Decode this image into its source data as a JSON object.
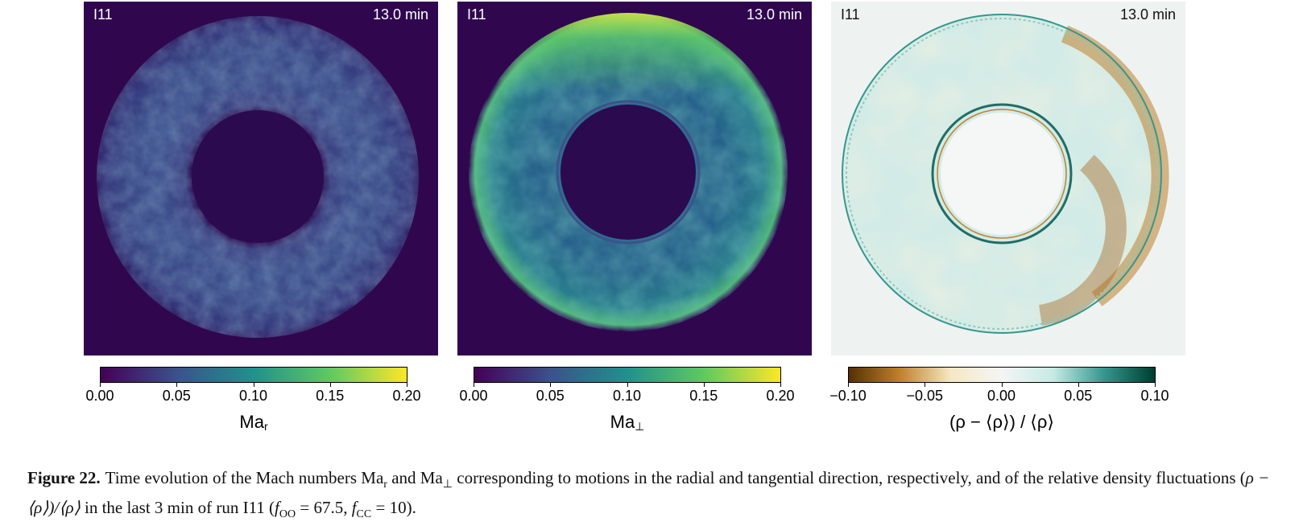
{
  "panels": [
    {
      "label": "I11",
      "time": "13.0 min",
      "colorbar": {
        "ticks": [
          "0.00",
          "0.05",
          "0.10",
          "0.15",
          "0.20"
        ],
        "title_main": "Ma",
        "title_sub": "r",
        "colors": [
          "#440154",
          "#3b528b",
          "#21918c",
          "#5ec962",
          "#fde725"
        ]
      }
    },
    {
      "label": "I11",
      "time": "13.0 min",
      "colorbar": {
        "ticks": [
          "0.00",
          "0.05",
          "0.10",
          "0.15",
          "0.20"
        ],
        "title_main": "Ma",
        "title_sub": "⊥",
        "colors": [
          "#440154",
          "#3b528b",
          "#21918c",
          "#5ec962",
          "#fde725"
        ]
      }
    },
    {
      "label": "I11",
      "time": "13.0 min",
      "colorbar": {
        "ticks": [
          "−0.10",
          "−0.05",
          "0.00",
          "0.05",
          "0.10"
        ],
        "title_main": "(ρ − ⟨ρ⟩) / ⟨ρ⟩",
        "title_sub": "",
        "colors": [
          "#543005",
          "#bf812d",
          "#f6e8c3",
          "#f5f5f5",
          "#c7eae5",
          "#35978f",
          "#003c30"
        ]
      }
    }
  ],
  "caption": {
    "label": "Figure 22.",
    "t1": "Time evolution of the Mach numbers Ma",
    "s1": "r",
    "t2": " and Ma",
    "s2": "⊥",
    "t3": " corresponding to motions in the radial and tangential direction, respectively, and of the relative density fluctuations (",
    "m1": "ρ − ⟨ρ⟩)/⟨ρ⟩",
    "t4": " in the last 3 min of run I11 (",
    "f1": "f",
    "fs1": "OO",
    "v1": " = 67.5, ",
    "f2": "f",
    "fs2": "CC",
    "v2": " = 10)."
  },
  "colors": {
    "viridis_bg": "#30074e",
    "ring_dark": "#3b3a7e",
    "ring_mid": "#2e6e8e",
    "ring_bright": "#5ec962",
    "density_bg": "#eef3f1"
  }
}
